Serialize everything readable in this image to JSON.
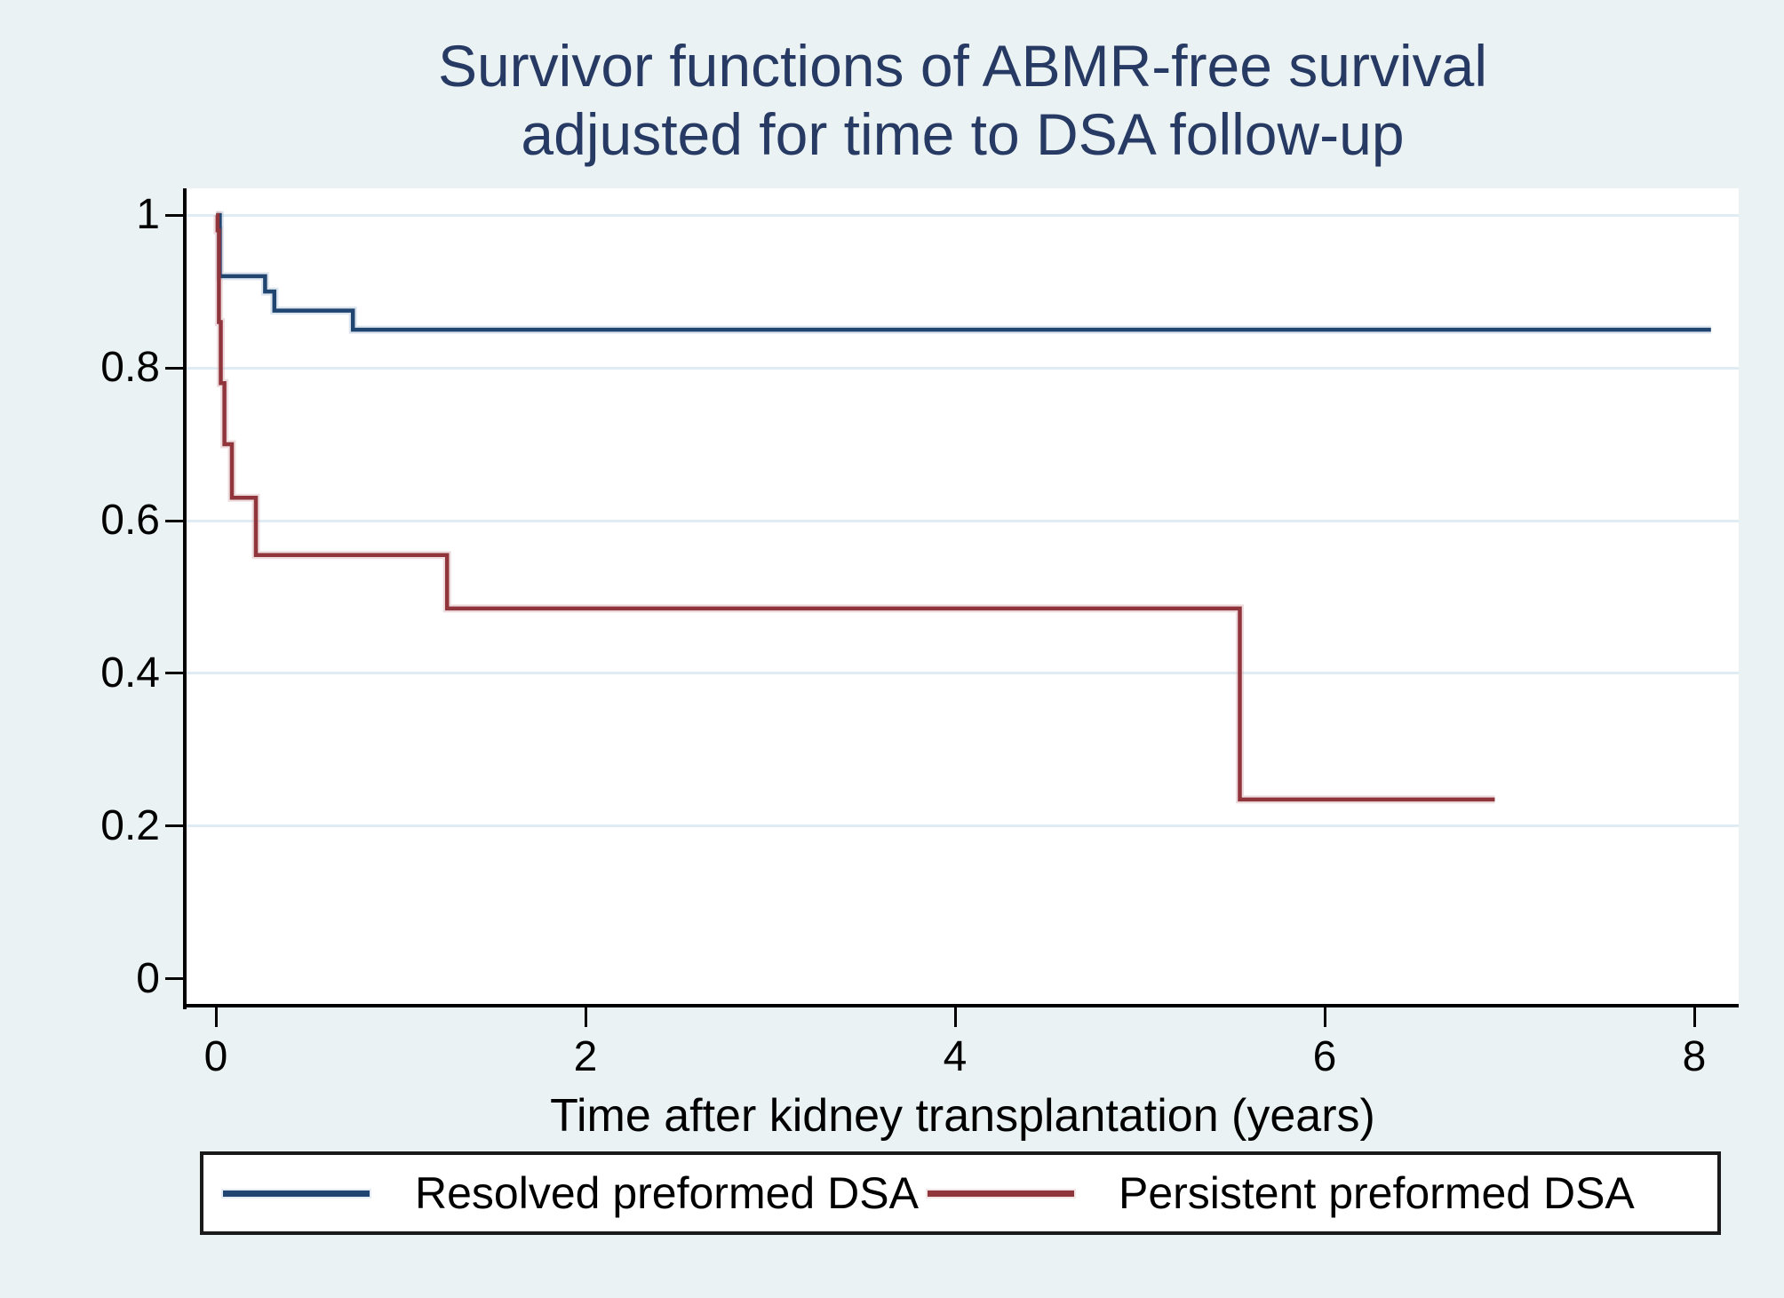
{
  "title": {
    "line1": "Survivor functions of ABMR-free survival",
    "line2": "adjusted for time to DSA follow-up",
    "color": "#273a63"
  },
  "axes": {
    "x": {
      "label": "Time after kidney transplantation (years)",
      "ticks": [
        {
          "value": 0,
          "label": "0"
        },
        {
          "value": 2,
          "label": "2"
        },
        {
          "value": 4,
          "label": "4"
        },
        {
          "value": 6,
          "label": "6"
        },
        {
          "value": 8,
          "label": "8"
        }
      ]
    },
    "y": {
      "label": "",
      "ticks": [
        {
          "value": 1.0,
          "label": "1"
        },
        {
          "value": 0.8,
          "label": "0.8"
        },
        {
          "value": 0.6,
          "label": "0.6"
        },
        {
          "value": 0.4,
          "label": "0.4"
        },
        {
          "value": 0.2,
          "label": "0.2"
        },
        {
          "value": 0.0,
          "label": "0"
        }
      ]
    }
  },
  "legend": {
    "items": [
      {
        "label": "Resolved preformed DSA",
        "color": "#1f4570"
      },
      {
        "label": "Persistent preformed DSA",
        "color": "#90353b"
      }
    ]
  },
  "colors": {
    "background": "#eaf2f3",
    "plot_background": "#ffffff",
    "gridline": "#e0ecf3",
    "axis": "#000000",
    "title": "#273a63",
    "resolved_line": "#1f4570",
    "resolved_halo": "#b3c6da",
    "persistent_line": "#90353b",
    "persistent_halo": "#d9b3b6"
  },
  "chart_data": {
    "type": "line",
    "subtype": "kaplan-meier-step",
    "title": "Survivor functions of ABMR-free survival adjusted for time to DSA follow-up",
    "xlabel": "Time after kidney transplantation (years)",
    "ylabel": "",
    "xlim": [
      -0.16,
      8.24
    ],
    "ylim": [
      -0.035,
      1.035
    ],
    "grid": "horizontal",
    "legend_position": "bottom",
    "series": [
      {
        "name": "Resolved preformed DSA",
        "color": "#1f4570",
        "end_x": 8.09,
        "steps": [
          [
            0,
            1.0
          ],
          [
            0.02,
            0.92
          ],
          [
            0.265,
            0.9
          ],
          [
            0.315,
            0.875
          ],
          [
            0.74,
            0.85
          ]
        ]
      },
      {
        "name": "Persistent preformed DSA",
        "color": "#90353b",
        "end_x": 6.92,
        "steps": [
          [
            0,
            1.0
          ],
          [
            0.008,
            0.98
          ],
          [
            0.015,
            0.86
          ],
          [
            0.025,
            0.78
          ],
          [
            0.045,
            0.7
          ],
          [
            0.085,
            0.63
          ],
          [
            0.215,
            0.555
          ],
          [
            1.25,
            0.485
          ],
          [
            5.54,
            0.235
          ]
        ]
      }
    ]
  }
}
